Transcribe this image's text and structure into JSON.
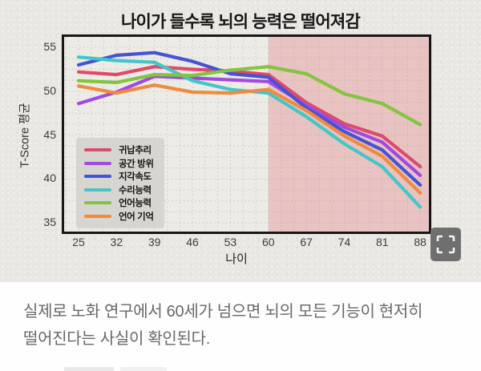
{
  "title": "나이가 들수록 뇌의 능력은 떨어져감",
  "chart_data": {
    "type": "line",
    "x": [
      25,
      32,
      39,
      46,
      53,
      60,
      67,
      74,
      81,
      88
    ],
    "xlabel": "나이",
    "ylabel": "T-Score 평균",
    "xlim": [
      22.34,
      89.6
    ],
    "ylim": [
      34.0,
      56.2
    ],
    "xticks": [
      25,
      32,
      39,
      46,
      53,
      60,
      67,
      74,
      81,
      88
    ],
    "yticks": [
      35,
      40,
      45,
      50,
      55
    ],
    "grid": "fine dotted mesh",
    "legend_position": "bottom-left",
    "shade_from_x": 60,
    "shade_color": "rgba(222,112,118,0.32)",
    "series": [
      {
        "id": "inductive-reasoning",
        "name": "귀납추리",
        "color": "#e04a6a",
        "values": [
          52.2,
          51.9,
          52.8,
          52.5,
          52.3,
          51.9,
          48.7,
          46.3,
          44.9,
          41.4
        ]
      },
      {
        "id": "spatial-orientation",
        "name": "공간 방위",
        "color": "#a04ae0",
        "values": [
          48.6,
          49.9,
          51.7,
          51.5,
          51.3,
          51.1,
          48.4,
          45.9,
          44.2,
          40.4
        ]
      },
      {
        "id": "perceptual-speed",
        "name": "지각속도",
        "color": "#4553d6",
        "values": [
          53.0,
          54.1,
          54.4,
          53.4,
          52.0,
          51.6,
          48.1,
          45.4,
          43.3,
          39.3
        ]
      },
      {
        "id": "numeric-ability",
        "name": "수리능력",
        "color": "#43c6ca",
        "values": [
          53.9,
          53.5,
          53.3,
          51.2,
          50.2,
          49.8,
          47.1,
          44.0,
          41.4,
          36.8
        ]
      },
      {
        "id": "verbal-ability",
        "name": "언어능력",
        "color": "#84c440",
        "values": [
          51.2,
          51.0,
          51.9,
          51.8,
          52.4,
          52.8,
          52.0,
          49.7,
          48.6,
          46.2
        ]
      },
      {
        "id": "verbal-memory",
        "name": "언어 기억",
        "color": "#f08b3c",
        "values": [
          50.6,
          49.8,
          50.7,
          49.9,
          49.8,
          50.2,
          47.8,
          44.9,
          42.6,
          38.4
        ]
      }
    ]
  },
  "caption": {
    "line1": "실제로 노화 연구에서 60세가 넘으면 뇌의 모든 기능이 현저히",
    "line2": "떨어진다는 사실이 확인된다."
  }
}
